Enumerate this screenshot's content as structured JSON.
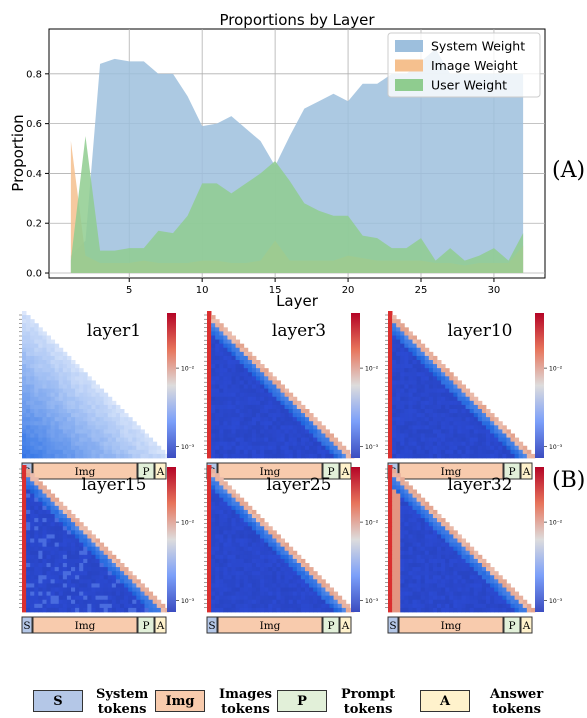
{
  "panels": {
    "a_label": "(A)",
    "b_label": "(B)"
  },
  "chart_data": [
    {
      "type": "area",
      "title": "Proportions by Layer",
      "xlabel": "Layer",
      "ylabel": "Proportion",
      "xlim": [
        -0.5,
        33.5
      ],
      "ylim": [
        -0.02,
        0.98
      ],
      "x_ticks": [
        5,
        10,
        15,
        20,
        25,
        30
      ],
      "y_ticks": [
        0.0,
        0.2,
        0.4,
        0.6,
        0.8
      ],
      "x_tick_labels": [
        "5",
        "10",
        "15",
        "20",
        "25",
        "30"
      ],
      "y_tick_labels": [
        "0.0",
        "0.2",
        "0.4",
        "0.6",
        "0.8"
      ],
      "grid": true,
      "legend_position": "top-right",
      "x": [
        1,
        2,
        3,
        4,
        5,
        6,
        7,
        8,
        9,
        10,
        11,
        12,
        13,
        14,
        15,
        16,
        17,
        18,
        19,
        20,
        21,
        22,
        23,
        24,
        25,
        26,
        27,
        28,
        29,
        30,
        31,
        32
      ],
      "series": [
        {
          "name": "System Weight",
          "color": "#9dbfdd",
          "values": [
            0.07,
            0.13,
            0.84,
            0.86,
            0.85,
            0.85,
            0.8,
            0.8,
            0.71,
            0.59,
            0.6,
            0.63,
            0.58,
            0.53,
            0.43,
            0.55,
            0.66,
            0.69,
            0.72,
            0.69,
            0.76,
            0.76,
            0.8,
            0.8,
            0.85,
            0.9,
            0.8,
            0.8,
            0.8,
            0.8,
            0.8,
            0.8
          ]
        },
        {
          "name": "Image Weight",
          "color": "#f5c08e",
          "values": [
            0.53,
            0.07,
            0.04,
            0.04,
            0.04,
            0.05,
            0.04,
            0.04,
            0.04,
            0.05,
            0.05,
            0.04,
            0.04,
            0.05,
            0.13,
            0.05,
            0.05,
            0.05,
            0.05,
            0.07,
            0.06,
            0.05,
            0.05,
            0.05,
            0.05,
            0.04,
            0.04,
            0.03,
            0.04,
            0.04,
            0.04,
            0.11
          ]
        },
        {
          "name": "User Weight",
          "color": "#8fcc8f",
          "values": [
            0.05,
            0.55,
            0.09,
            0.09,
            0.1,
            0.1,
            0.17,
            0.16,
            0.23,
            0.36,
            0.36,
            0.32,
            0.36,
            0.4,
            0.45,
            0.37,
            0.28,
            0.25,
            0.23,
            0.23,
            0.15,
            0.14,
            0.1,
            0.1,
            0.14,
            0.05,
            0.1,
            0.05,
            0.07,
            0.1,
            0.05,
            0.16
          ]
        }
      ]
    },
    {
      "type": "heatmap",
      "colorbar_scale": "log",
      "colorbar_tick_labels": [
        "10⁻²",
        "10⁻³"
      ],
      "segments": [
        "S",
        "Img",
        "P",
        "A"
      ],
      "panels": [
        {
          "title": "layer1",
          "mode": "light"
        },
        {
          "title": "layer3",
          "mode": "dark"
        },
        {
          "title": "layer10",
          "mode": "dark"
        },
        {
          "title": "layer15",
          "mode": "mid"
        },
        {
          "title": "layer25",
          "mode": "dark"
        },
        {
          "title": "layer32",
          "mode": "mixed"
        }
      ]
    }
  ],
  "legend": [
    {
      "abbr": "S",
      "label_line1": "System",
      "label_line2": "tokens",
      "color": "#b4c7e7"
    },
    {
      "abbr": "Img",
      "label_line1": "Images",
      "label_line2": "tokens",
      "color": "#f8cbad"
    },
    {
      "abbr": "P",
      "label_line1": "Prompt",
      "label_line2": "tokens",
      "color": "#e2f0d9"
    },
    {
      "abbr": "A",
      "label_line1": "Answer",
      "label_line2": "tokens",
      "color": "#fff2cc"
    }
  ]
}
